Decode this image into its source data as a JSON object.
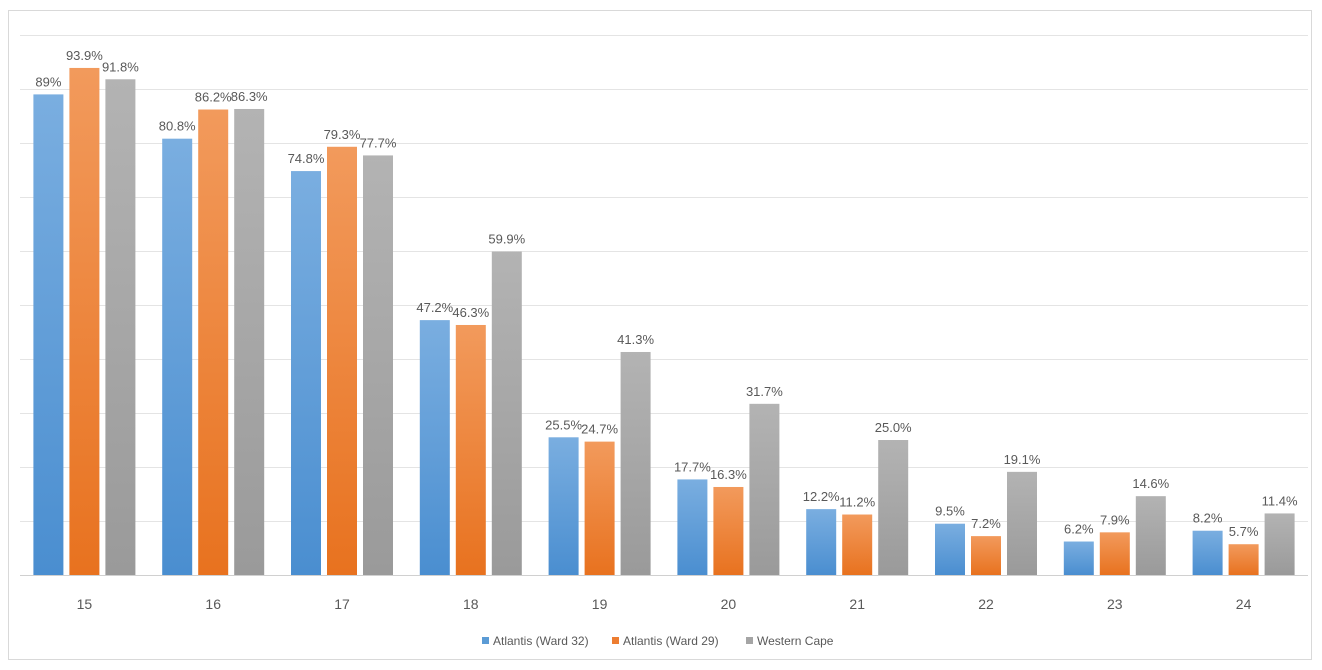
{
  "chart_data": {
    "type": "bar",
    "categories": [
      "15",
      "16",
      "17",
      "18",
      "19",
      "20",
      "21",
      "22",
      "23",
      "24"
    ],
    "ylim": [
      0,
      100
    ],
    "grid": true,
    "legend_position": "bottom",
    "series": [
      {
        "name": "Atlantis (Ward 32)",
        "color": "#5b9bd5",
        "values": [
          89,
          80.8,
          74.8,
          47.2,
          25.5,
          17.7,
          12.2,
          9.5,
          6.2,
          8.2
        ],
        "labels": [
          "89%",
          "80.8%",
          "74.8%",
          "47.2%",
          "25.5%",
          "17.7%",
          "12.2%",
          "9.5%",
          "6.2%",
          "8.2%"
        ]
      },
      {
        "name": "Atlantis (Ward 29)",
        "color": "#ed7d31",
        "values": [
          93.9,
          86.2,
          79.3,
          46.3,
          24.7,
          16.3,
          11.2,
          7.2,
          7.9,
          5.7
        ],
        "labels": [
          "93.9%",
          "86.2%",
          "79.3%",
          "46.3%",
          "24.7%",
          "16.3%",
          "11.2%",
          "7.2%",
          "7.9%",
          "5.7%"
        ]
      },
      {
        "name": "Western Cape",
        "color": "#a5a5a5",
        "values": [
          91.8,
          86.3,
          77.7,
          59.9,
          41.3,
          31.7,
          25.0,
          19.1,
          14.6,
          11.4
        ],
        "labels": [
          "91.8%",
          "86.3%",
          "77.7%",
          "59.9%",
          "41.3%",
          "31.7%",
          "25.0%",
          "19.1%",
          "14.6%",
          "11.4%"
        ]
      }
    ]
  }
}
